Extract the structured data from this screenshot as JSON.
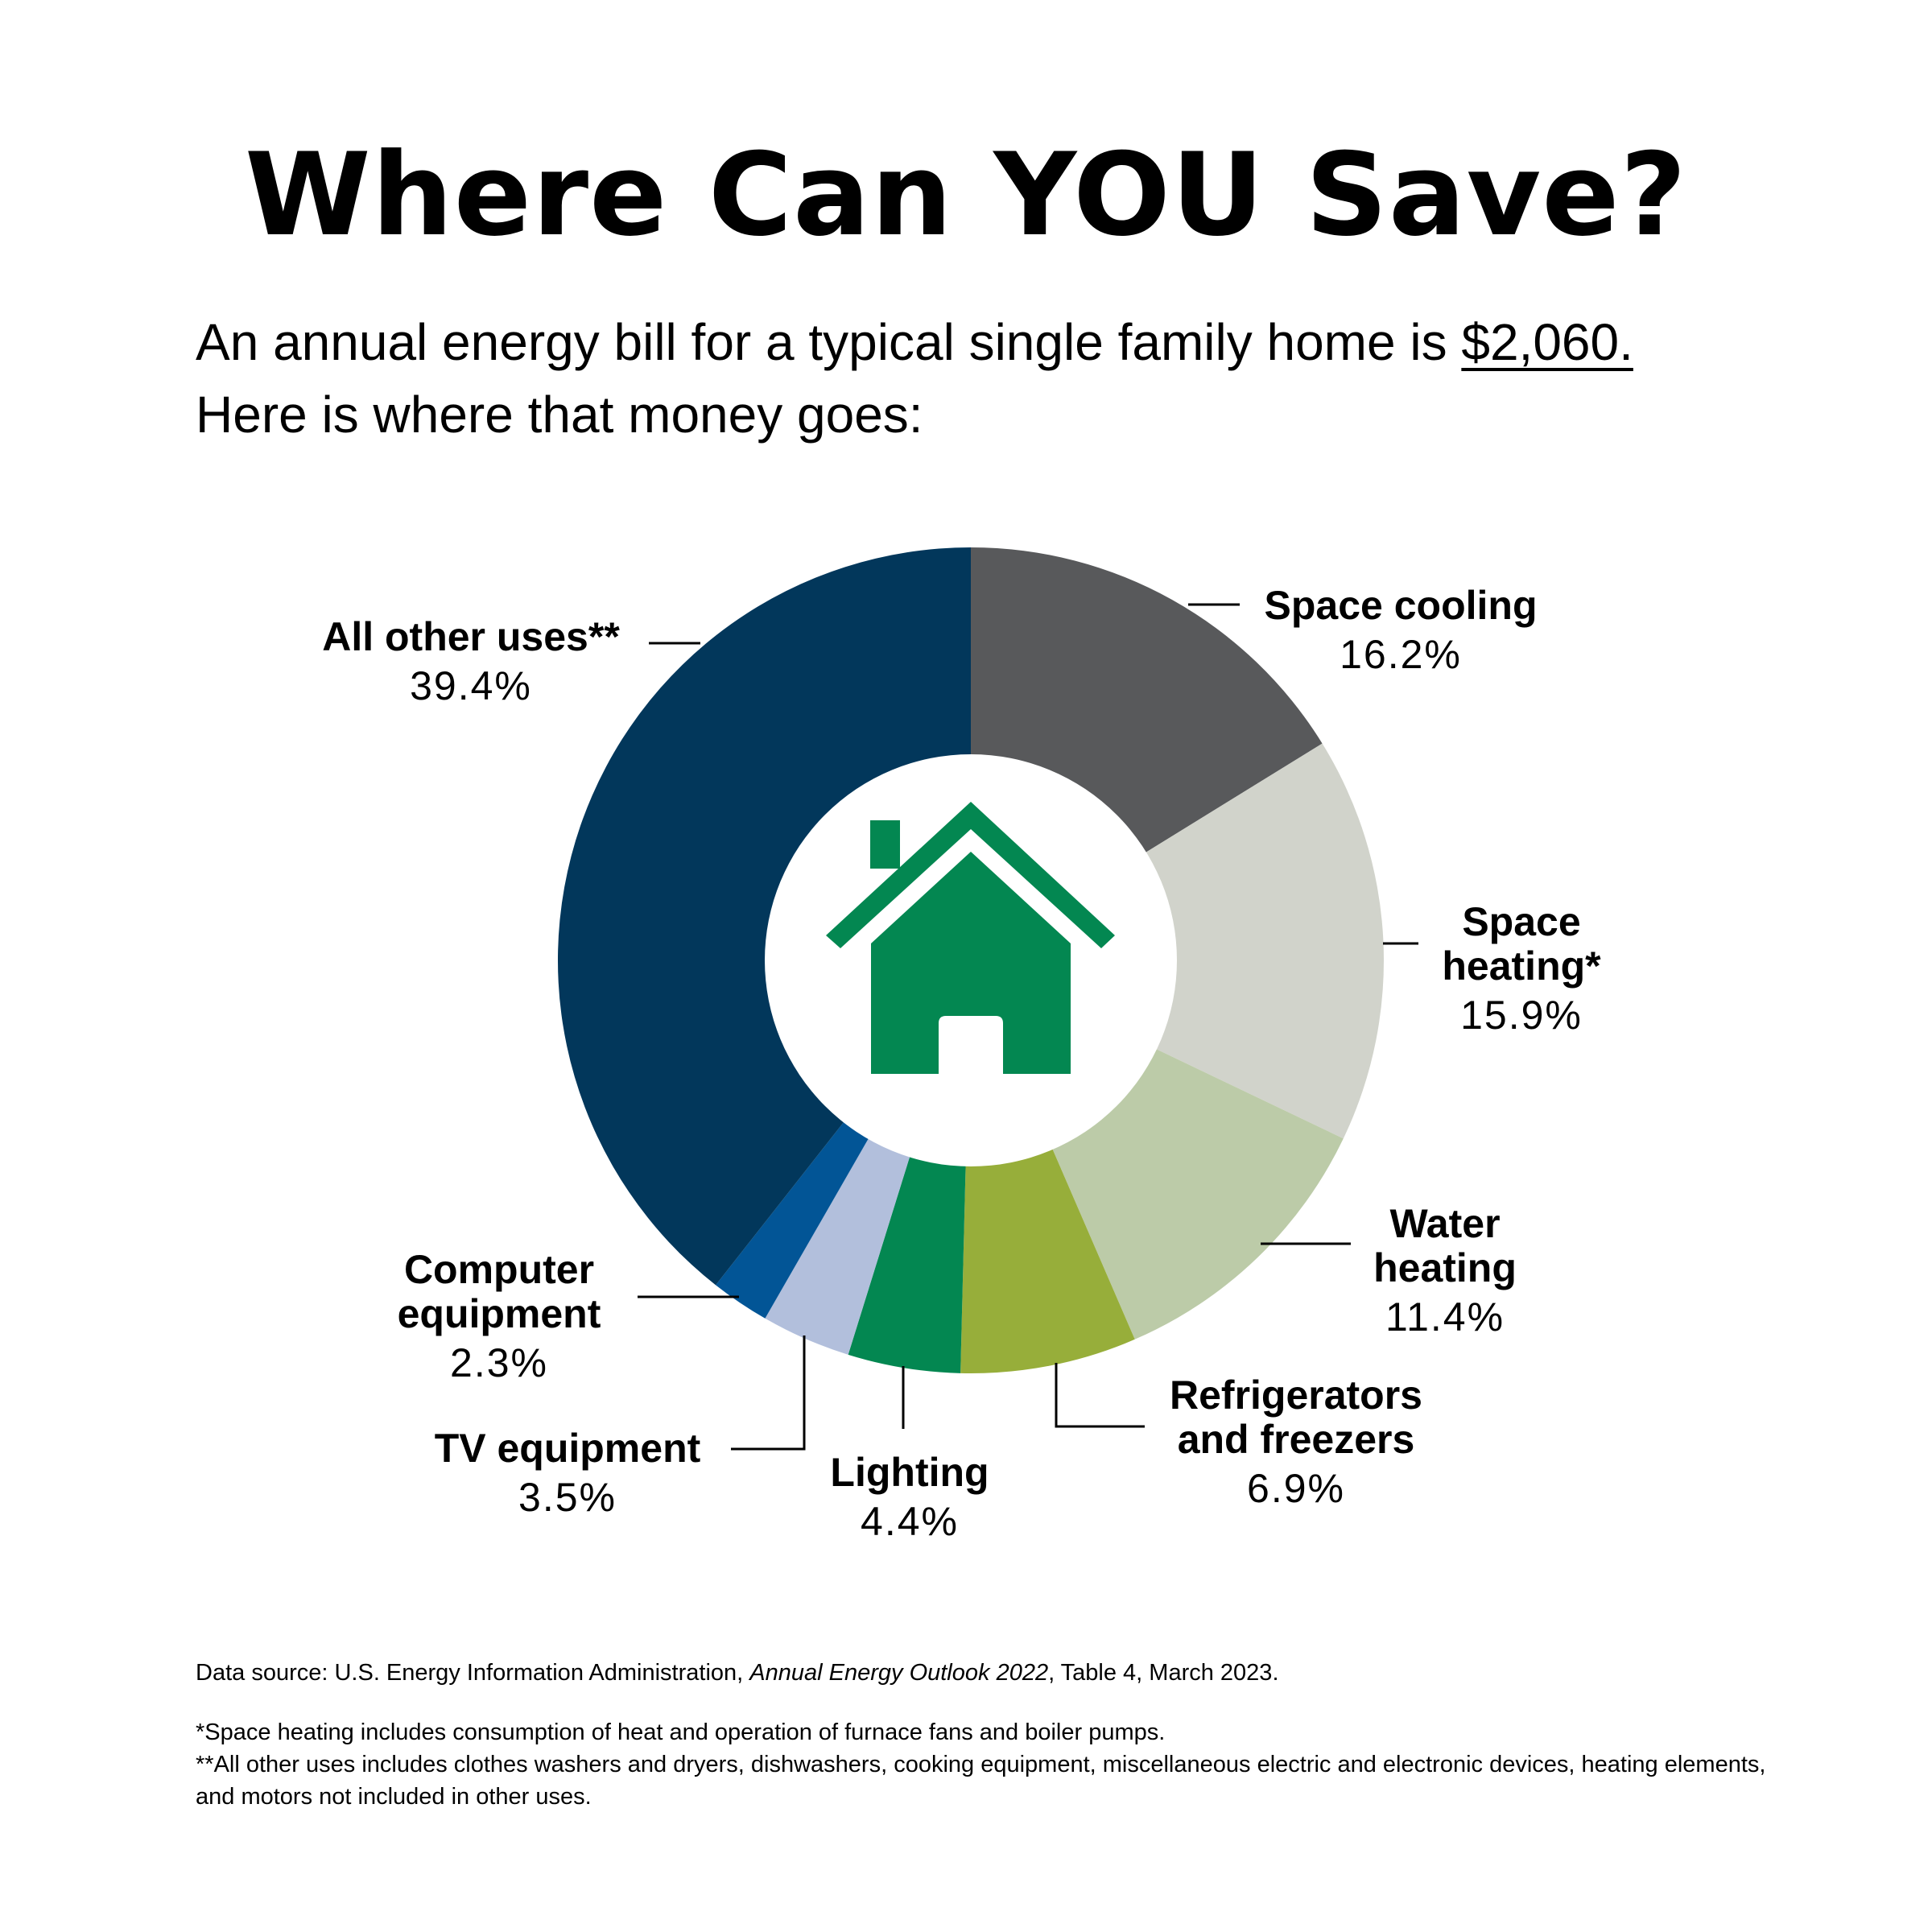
{
  "title": "Where Can YOU Save?",
  "intro": {
    "line1_prefix": "An annual energy bill for a typical single family home is ",
    "amount": "$2,060.",
    "line2": "Here is where that money goes:"
  },
  "chart_data": {
    "type": "pie",
    "variant": "donut",
    "categories": [
      "Space cooling",
      "Space heating*",
      "Water heating",
      "Refrigerators and freezers",
      "Lighting",
      "TV equipment",
      "Computer equipment",
      "All other uses**"
    ],
    "values": [
      16.2,
      15.9,
      11.4,
      6.9,
      4.4,
      3.5,
      2.3,
      39.4
    ],
    "value_labels": [
      "16.2%",
      "15.9%",
      "11.4%",
      "6.9%",
      "4.4%",
      "3.5%",
      "2.3%",
      "39.4%"
    ],
    "colors": [
      "#58595b",
      "#d1d3cb",
      "#bccba8",
      "#97ae3a",
      "#038751",
      "#b2bfdc",
      "#025596",
      "#02375b"
    ],
    "label_lines": [
      {
        "name": "Space cooling"
      },
      {
        "name": "Space",
        "name2": "heating*"
      },
      {
        "name": "Water",
        "name2": "heating"
      },
      {
        "name": "Refrigerators",
        "name2": "and freezers"
      },
      {
        "name": "Lighting"
      },
      {
        "name": "TV equipment"
      },
      {
        "name": "Computer",
        "name2": "equipment"
      },
      {
        "name": "All other uses**"
      }
    ],
    "center_icon": "house-icon",
    "icon_color": "#038751",
    "legend": "none"
  },
  "footer": {
    "source_prefix": "Data source: U.S. Energy Information Administration, ",
    "source_italic": "Annual Energy Outlook 2022",
    "source_suffix": ", Table 4, March 2023.",
    "note1": "*Space heating includes consumption of heat and operation of furnace fans and boiler pumps.",
    "note2": "**All other uses includes clothes washers and dryers, dishwashers, cooking equipment, miscellaneous electric and electronic devices, heating elements, and motors not included in other uses."
  }
}
